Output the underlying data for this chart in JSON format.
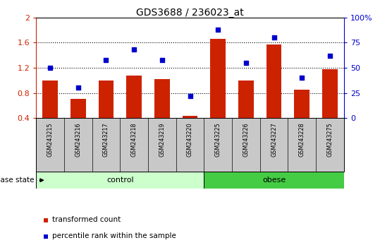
{
  "title": "GDS3688 / 236023_at",
  "samples": [
    "GSM243215",
    "GSM243216",
    "GSM243217",
    "GSM243218",
    "GSM243219",
    "GSM243220",
    "GSM243225",
    "GSM243226",
    "GSM243227",
    "GSM243228",
    "GSM243275"
  ],
  "bar_values": [
    1.0,
    0.7,
    1.0,
    1.08,
    1.02,
    0.43,
    1.66,
    1.0,
    1.57,
    0.85,
    1.18
  ],
  "dot_values": [
    50,
    30,
    58,
    68,
    58,
    22,
    88,
    55,
    80,
    40,
    62
  ],
  "bar_color": "#cc2200",
  "dot_color": "#0000cc",
  "ylim_left": [
    0.4,
    2.0
  ],
  "ylim_right": [
    0,
    100
  ],
  "yticks_left": [
    0.4,
    0.8,
    1.2,
    1.6,
    2.0
  ],
  "ytick_labels_left": [
    "0.4",
    "0.8",
    "1.2",
    "1.6",
    "2"
  ],
  "yticks_right": [
    0,
    25,
    50,
    75,
    100
  ],
  "ytick_labels_right": [
    "0",
    "25",
    "50",
    "75",
    "100%"
  ],
  "control_color": "#ccffcc",
  "obese_color": "#44cc44",
  "disease_state_label": "disease state",
  "legend_bar_label": "transformed count",
  "legend_dot_label": "percentile rank within the sample",
  "xlabel_area_color": "#c8c8c8",
  "grid_dotted_at": [
    0.8,
    1.2,
    1.6
  ],
  "control_count": 6,
  "obese_count": 5
}
